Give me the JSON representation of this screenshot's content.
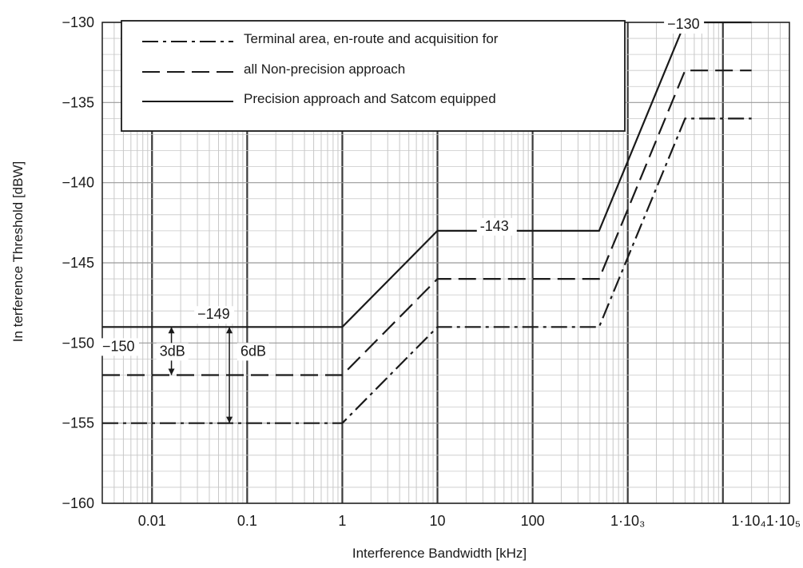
{
  "chart_data": {
    "type": "line",
    "title": "",
    "xlabel": "Interference Bandwidth [kHz]",
    "ylabel": "In terference Threshold [dBW]",
    "x_scale": "log",
    "xlim": [
      0.003,
      50000
    ],
    "ylim": [
      -160,
      -130
    ],
    "grid": true,
    "legend_position": "top-left",
    "y_ticks": [
      -130,
      -135,
      -140,
      -145,
      -150,
      -155,
      -160
    ],
    "y_tick_labels": [
      "−130",
      "−135",
      "−140",
      "−145",
      "−150",
      "−155",
      "−160"
    ],
    "x_ticks": [
      0.01,
      0.1,
      1,
      10,
      100,
      1000,
      10000
    ],
    "x_tick_labels": [
      "0.01",
      "0.1",
      "1",
      "10",
      "100",
      "1·10₃",
      "1·10₄1·10₅"
    ],
    "legend": [
      "Terminal area, en-route and acquisition for",
      "all Non-precision approach",
      "Precision approach and Satcom equipped"
    ],
    "series": [
      {
        "line_style": "dash-dot",
        "x": [
          0.003,
          1,
          10,
          500,
          4000,
          20000
        ],
        "y": [
          -155,
          -155,
          -149,
          -149,
          -136,
          -136
        ]
      },
      {
        "line_style": "dashed",
        "x": [
          0.003,
          1,
          10,
          500,
          4000,
          20000
        ],
        "y": [
          -152,
          -152,
          -146,
          -146,
          -133,
          -133
        ]
      },
      {
        "line_style": "solid",
        "x": [
          0.003,
          1,
          10,
          500,
          4000,
          20000
        ],
        "y": [
          -149,
          -149,
          -143,
          -143,
          -130,
          -130
        ]
      }
    ],
    "annotations": [
      {
        "text": "−149",
        "x": 0.03,
        "y": -148.5
      },
      {
        "text": "−150",
        "x": 0.003,
        "y": -150.5
      },
      {
        "text": "3dB",
        "x": 0.012,
        "y": -150.8
      },
      {
        "text": "6dB",
        "x": 0.085,
        "y": -150.8
      },
      {
        "text": "-143",
        "x": 28,
        "y": -143
      },
      {
        "text": "−130",
        "x": 2600,
        "y": -130.4
      }
    ],
    "colors": {
      "line": "#1a1a1a",
      "major_grid": "#3a3a3a",
      "minor_grid": "#c8c8c8",
      "background": "#ffffff"
    }
  }
}
